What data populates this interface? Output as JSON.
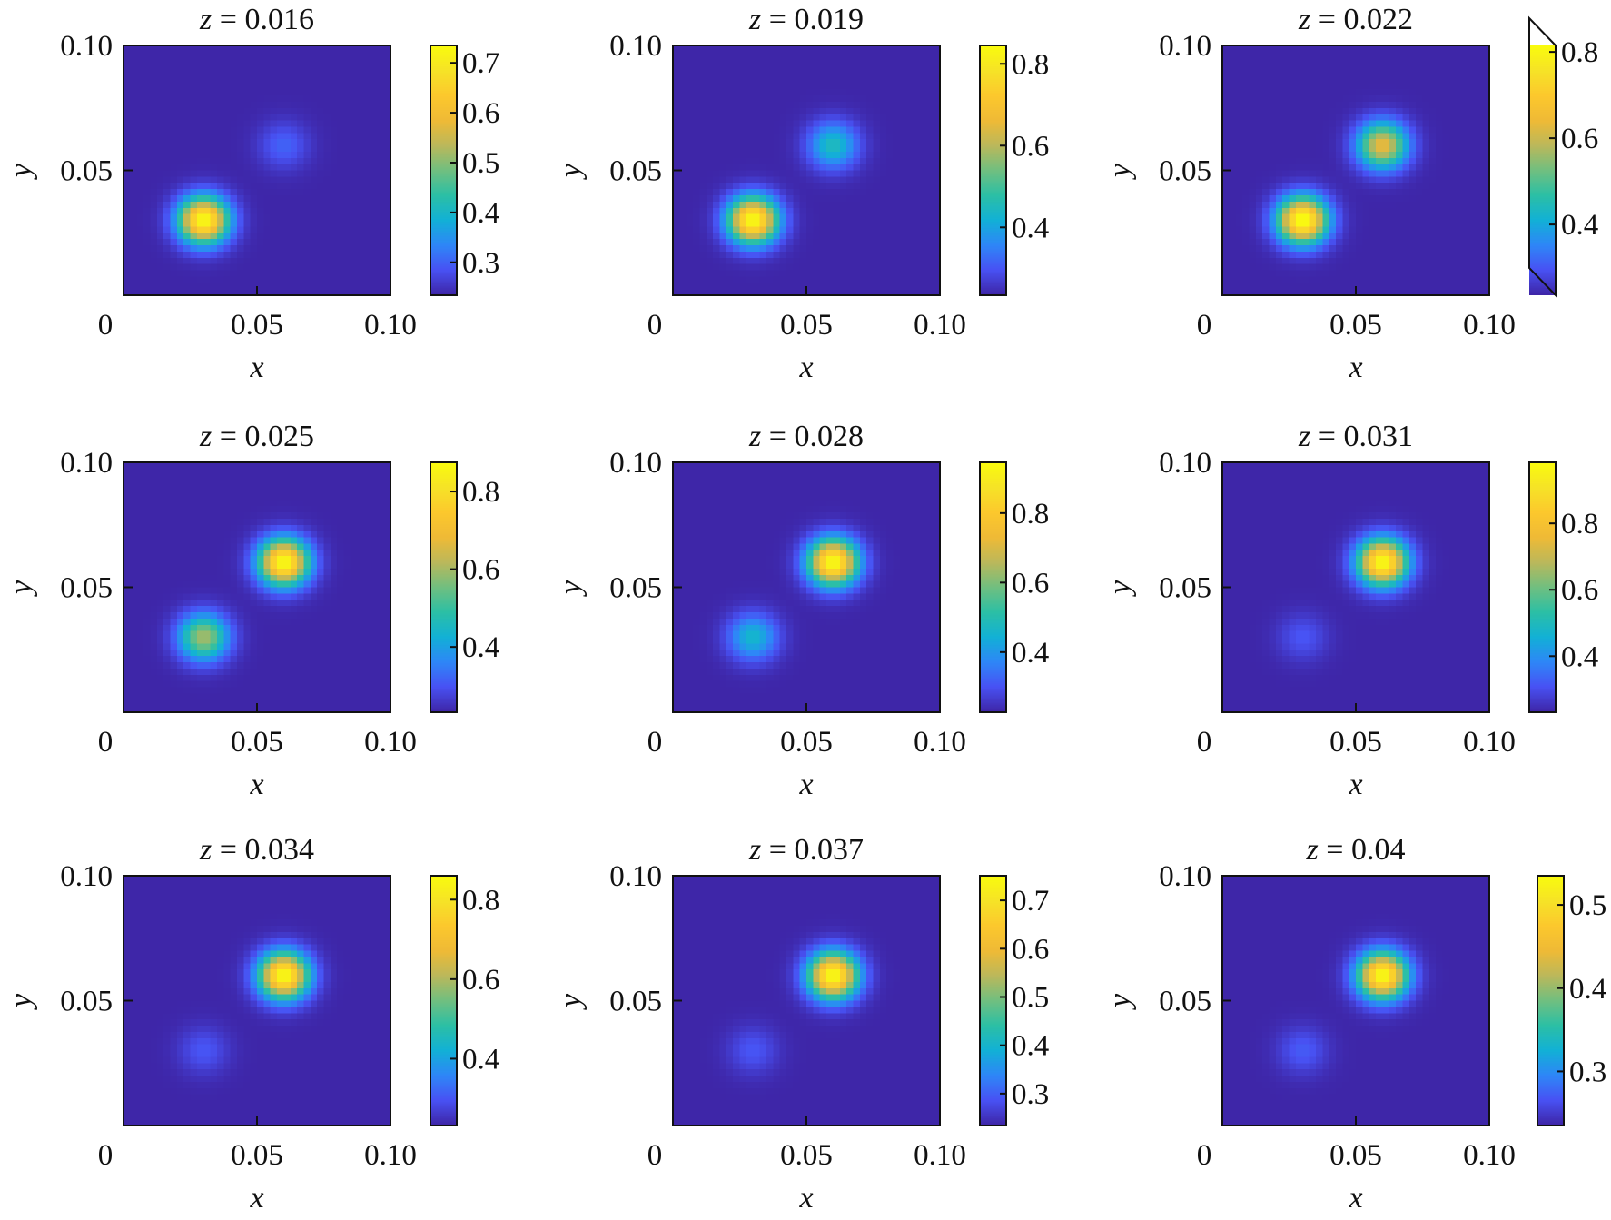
{
  "chart_data": [
    {
      "type": "heatmap",
      "title_var": "z",
      "title_value": "0.016",
      "xlabel": "x",
      "ylabel": "y",
      "xlim": [
        0,
        0.1
      ],
      "ylim": [
        0,
        0.1
      ],
      "xticks": [
        "0",
        "0.05",
        "0.10"
      ],
      "yticks": [
        "0.05",
        "0.10"
      ],
      "colorbar": {
        "range": [
          0.234,
          0.735
        ],
        "ticks": [
          0.3,
          0.4,
          0.5,
          0.6,
          0.7
        ],
        "tick_labels": [
          "0.3",
          "0.4",
          "0.5",
          "0.6",
          "0.7"
        ]
      },
      "peaks": [
        {
          "x": 0.03,
          "y": 0.03,
          "value": 0.735
        },
        {
          "x": 0.06,
          "y": 0.06,
          "value": 0.3
        }
      ]
    },
    {
      "type": "heatmap",
      "title_var": "z",
      "title_value": "0.019",
      "xlabel": "x",
      "ylabel": "y",
      "xlim": [
        0,
        0.1
      ],
      "ylim": [
        0,
        0.1
      ],
      "xticks": [
        "0",
        "0.05",
        "0.10"
      ],
      "yticks": [
        "0.05",
        "0.10"
      ],
      "colorbar": {
        "range": [
          0.234,
          0.845
        ],
        "ticks": [
          0.4,
          0.6,
          0.8
        ],
        "tick_labels": [
          "0.4",
          "0.6",
          "0.8"
        ]
      },
      "peaks": [
        {
          "x": 0.03,
          "y": 0.03,
          "value": 0.845
        },
        {
          "x": 0.06,
          "y": 0.06,
          "value": 0.45
        }
      ]
    },
    {
      "type": "heatmap",
      "title_var": "z",
      "title_value": "0.022",
      "xlabel": "x",
      "ylabel": "y",
      "xlim": [
        0,
        0.1
      ],
      "ylim": [
        0,
        0.1
      ],
      "xticks": [
        "0",
        "0.05",
        "0.10"
      ],
      "yticks": [
        "0.05",
        "0.10"
      ],
      "colorbar": {
        "range": [
          0.236,
          0.815
        ],
        "ticks": [
          0.4,
          0.6,
          0.8
        ],
        "tick_labels": [
          "0.4",
          "0.6",
          "0.8"
        ],
        "extend": "both"
      },
      "peaks": [
        {
          "x": 0.03,
          "y": 0.03,
          "value": 0.83
        },
        {
          "x": 0.06,
          "y": 0.06,
          "value": 0.64
        }
      ]
    },
    {
      "type": "heatmap",
      "title_var": "z",
      "title_value": "0.025",
      "xlabel": "x",
      "ylabel": "y",
      "xlim": [
        0,
        0.1
      ],
      "ylim": [
        0,
        0.1
      ],
      "xticks": [
        "0",
        "0.05",
        "0.10"
      ],
      "yticks": [
        "0.05",
        "0.10"
      ],
      "colorbar": {
        "range": [
          0.232,
          0.875
        ],
        "ticks": [
          0.4,
          0.6,
          0.8
        ],
        "tick_labels": [
          "0.4",
          "0.6",
          "0.8"
        ]
      },
      "peaks": [
        {
          "x": 0.03,
          "y": 0.03,
          "value": 0.6
        },
        {
          "x": 0.06,
          "y": 0.06,
          "value": 0.875
        }
      ]
    },
    {
      "type": "heatmap",
      "title_var": "z",
      "title_value": "0.028",
      "xlabel": "x",
      "ylabel": "y",
      "xlim": [
        0,
        0.1
      ],
      "ylim": [
        0,
        0.1
      ],
      "xticks": [
        "0",
        "0.05",
        "0.10"
      ],
      "yticks": [
        "0.05",
        "0.10"
      ],
      "colorbar": {
        "range": [
          0.227,
          0.946
        ],
        "ticks": [
          0.4,
          0.6,
          0.8
        ],
        "tick_labels": [
          "0.4",
          "0.6",
          "0.8"
        ]
      },
      "peaks": [
        {
          "x": 0.03,
          "y": 0.03,
          "value": 0.46
        },
        {
          "x": 0.06,
          "y": 0.06,
          "value": 0.946
        }
      ]
    },
    {
      "type": "heatmap",
      "title_var": "z",
      "title_value": "0.031",
      "xlabel": "x",
      "ylabel": "y",
      "xlim": [
        0,
        0.1
      ],
      "ylim": [
        0,
        0.1
      ],
      "xticks": [
        "0",
        "0.05",
        "0.10"
      ],
      "yticks": [
        "0.05",
        "0.10"
      ],
      "colorbar": {
        "range": [
          0.231,
          0.984
        ],
        "ticks": [
          0.4,
          0.6,
          0.8
        ],
        "tick_labels": [
          "0.4",
          "0.6",
          "0.8"
        ]
      },
      "peaks": [
        {
          "x": 0.03,
          "y": 0.03,
          "value": 0.31
        },
        {
          "x": 0.06,
          "y": 0.06,
          "value": 0.984
        }
      ]
    },
    {
      "type": "heatmap",
      "title_var": "z",
      "title_value": "0.034",
      "xlabel": "x",
      "ylabel": "y",
      "xlim": [
        0,
        0.1
      ],
      "ylim": [
        0,
        0.1
      ],
      "xticks": [
        "0",
        "0.05",
        "0.10"
      ],
      "yticks": [
        "0.05",
        "0.10"
      ],
      "colorbar": {
        "range": [
          0.232,
          0.86
        ],
        "ticks": [
          0.4,
          0.6,
          0.8
        ],
        "tick_labels": [
          "0.4",
          "0.6",
          "0.8"
        ]
      },
      "peaks": [
        {
          "x": 0.03,
          "y": 0.03,
          "value": 0.3
        },
        {
          "x": 0.06,
          "y": 0.06,
          "value": 0.86
        }
      ]
    },
    {
      "type": "heatmap",
      "title_var": "z",
      "title_value": "0.037",
      "xlabel": "x",
      "ylabel": "y",
      "xlim": [
        0,
        0.1
      ],
      "ylim": [
        0,
        0.1
      ],
      "xticks": [
        "0",
        "0.05",
        "0.10"
      ],
      "yticks": [
        "0.05",
        "0.10"
      ],
      "colorbar": {
        "range": [
          0.234,
          0.751
        ],
        "ticks": [
          0.3,
          0.4,
          0.5,
          0.6,
          0.7
        ],
        "tick_labels": [
          "0.3",
          "0.4",
          "0.5",
          "0.6",
          "0.7"
        ]
      },
      "peaks": [
        {
          "x": 0.03,
          "y": 0.03,
          "value": 0.29
        },
        {
          "x": 0.06,
          "y": 0.06,
          "value": 0.751
        }
      ]
    },
    {
      "type": "heatmap",
      "title_var": "z",
      "title_value": "0.04",
      "xlabel": "x",
      "ylabel": "y",
      "xlim": [
        0,
        0.1
      ],
      "ylim": [
        0,
        0.1
      ],
      "xticks": [
        "0",
        "0.05",
        "0.10"
      ],
      "yticks": [
        "0.05",
        "0.10"
      ],
      "colorbar": {
        "range": [
          0.235,
          0.535
        ],
        "ticks": [
          0.3,
          0.4,
          0.5
        ],
        "tick_labels": [
          "0.3",
          "0.4",
          "0.5"
        ]
      },
      "peaks": [
        {
          "x": 0.03,
          "y": 0.03,
          "value": 0.27
        },
        {
          "x": 0.06,
          "y": 0.06,
          "value": 0.535
        }
      ]
    }
  ],
  "colormap": "parula"
}
